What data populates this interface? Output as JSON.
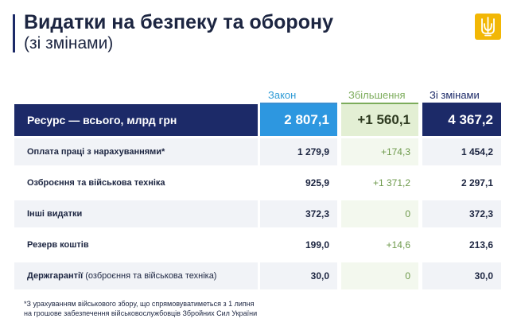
{
  "header": {
    "title": "Видатки на безпеку та оборону",
    "subtitle": "(зі змінами)"
  },
  "logo": {
    "icon": "trident-icon",
    "color": "#f2b705"
  },
  "chart_data": {
    "type": "table",
    "columns": [
      "Закон",
      "Збільшення",
      "Зі змінами"
    ],
    "column_colors": [
      "#2e9bd6",
      "#7cac5b",
      "#1c2a68"
    ],
    "total": {
      "label": "Ресурс — всього, млрд грн",
      "values": [
        "2 807,1",
        "+1 560,1",
        "4 367,2"
      ]
    },
    "rows": [
      {
        "label_bold": "Оплата праці з нарахуваннями*",
        "label_light": "",
        "values": [
          "1 279,9",
          "+174,3",
          "1 454,2"
        ]
      },
      {
        "label_bold": "Озброєння  та військова техніка",
        "label_light": "",
        "values": [
          "925,9",
          "+1 371,2",
          "2 297,1"
        ]
      },
      {
        "label_bold": "Інші видатки",
        "label_light": "",
        "values": [
          "372,3",
          "0",
          "372,3"
        ]
      },
      {
        "label_bold": "Резерв коштів",
        "label_light": "",
        "values": [
          "199,0",
          "+14,6",
          "213,6"
        ]
      },
      {
        "label_bold": "Держгарантії",
        "label_light": " (озброєння та військова техніка)",
        "values": [
          "30,0",
          "0",
          "30,0"
        ]
      }
    ]
  },
  "footnote": {
    "line1": "*З урахуванням військового збору, що спрямовуватиметься з 1 липня",
    "line2": "на грошове забезпечення військовослужбовців Збройних Сил України"
  }
}
